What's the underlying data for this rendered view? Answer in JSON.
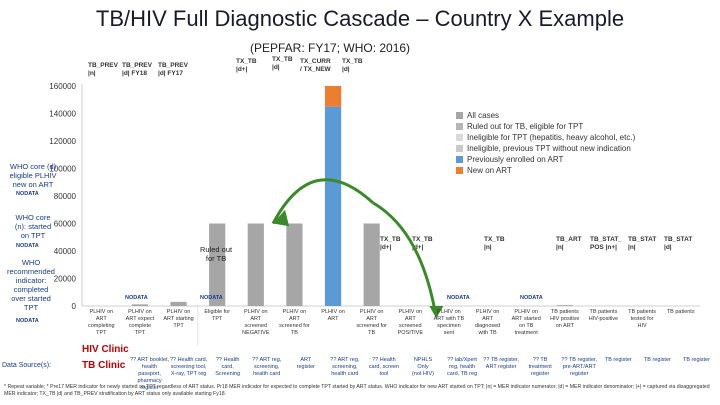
{
  "title": "TB/HIV Full Diagnostic Cascade – Country X Example",
  "subtitle": "(PEPFAR: FY17; WHO: 2016)",
  "headers": [
    {
      "text": "TB_PREV\n|n|"
    },
    {
      "text": "TB_PREV\n|d| FY18"
    },
    {
      "text": "TB_PREV\n|d| FY17"
    },
    {
      "text": "TX_TB\n|d+|"
    },
    {
      "text": "TX_TB\n|d|"
    },
    {
      "text": "TX_CURR\n/ TX_NEW"
    },
    {
      "text": "TX_TB\n|d|"
    },
    {
      "text": "TX_TB\n|d+|"
    },
    {
      "text": "TX_TB\n|d+|"
    },
    {
      "text": "TX_TB\n|n|"
    },
    {
      "text": "TB_ART\n|n|"
    },
    {
      "text": "TB_STAT_\nPOS |n+|"
    },
    {
      "text": "TB_STAT\n|n|"
    },
    {
      "text": "TB_STAT\n|d|"
    }
  ],
  "side_labels": {
    "who_core_a": "WHO core (d)\neligible PLHIV\nnew on ART",
    "who_core_n": "WHO core\n(n): started\non TPT",
    "who_recommended": "WHO\nrecommended\nindicator:\ncompleted\nover started\nTPT",
    "nodata": "NODATA"
  },
  "ruled_out_label": "Ruled out\nfor TB",
  "hiv_clinic": "HIV Clinic",
  "tb_clinic": "TB Clinic",
  "data_sources_label": "Data Source(s):",
  "x_labels": [
    "PLHIV on\nART\ncompleting\nTPT",
    "PLHIV on\nART expect\ncomplete\nTPT",
    "PLHIV on\nART starting\nTPT",
    "Eligible for\nTPT",
    "PLHIV on\nART\nscreened\nNEGATIVE",
    "PLHIV on\nART\nscreened for\nTB",
    "PLHIV on\nART",
    "PLHIV on\nART\nscreened for\nTB",
    "PLHIV on\nART\nscreened\nPOSITIVE",
    "PLHIV on\nART with TB\nspecimen\nsent",
    "PLHIV on\nART\ndiagnosed\nwith TB",
    "PLHIV on\nART started\non TB\ntreatment",
    "TB patients\nHIV positive\non ART",
    "TB patients\nHIV-positive",
    "TB patients\ntested for\nHIV",
    "TB patients"
  ],
  "sources": [
    "?? ART booklet, health\npassport, pharmacy register",
    "?? Health card,\nscreening tool,\nX-ray, TPT reg",
    "?? Health\ncard,\nScreening",
    "?? ART reg,\nscreening,\nhealth card",
    "ART\nregister",
    "?? ART reg,\nscreening,\nhealth card",
    "?? Health\ncard, screen\ntool",
    "NPHLS\nOnly\n(not HIV)",
    "?? lab/Xpert\nreg, health\ncard, TB reg",
    "?? TB register,\nART register",
    "?? TB\ntreatment\nregister",
    "?? TB register,\npre-ART/ART\nregister",
    "TB register",
    "TB register",
    "TB register"
  ],
  "footnote": "* Repeat variable; * Pre17 MER indicator for newly started on TPT regardless of ART status. Pr18 MER indicator for expected to complete TPT started by ART status. WHO indicator for new ART started on TPT; |n| = MER indicator numerator; |d| = MER indicator denominator; |+| = captured via disaggregated MER indicator; TX_TB |d| and TB_PREV stratification by ART status only available starting Fy18.",
  "colors": {
    "all_cases": "#a6a6a6",
    "ruled_out": "#b7b7b7",
    "ineligible_hep": "#d9d9d9",
    "ineligible_prev": "#c9c9c9",
    "previously_on_art": "#5b9bd5",
    "new_on_art": "#ed7d31",
    "arrow": "#3a8a2a",
    "title": "#1a1a2e",
    "accent_blue": "#1a3c8a",
    "clinic_red": "#c00000"
  },
  "chart_data": {
    "type": "bar",
    "ylim": [
      0,
      160000
    ],
    "yticks": [
      "0",
      "20000",
      "40000",
      "60000",
      "80000",
      "100000",
      "120000",
      "140000",
      "160000"
    ],
    "stacked": true,
    "legend_placement": "right",
    "grid": false,
    "series": [
      {
        "name": "All cases",
        "color": "#a6a6a6",
        "values": [
          0,
          1200,
          3000,
          60000,
          60000,
          60000,
          0,
          60000,
          0,
          0,
          0,
          0,
          600,
          0,
          0,
          0
        ]
      },
      {
        "name": "Ruled out for TB, eligible for TPT",
        "color": "#b7b7b7",
        "values": [
          0,
          0,
          0,
          0,
          0,
          0,
          0,
          0,
          0,
          0,
          0,
          0,
          0,
          0,
          0,
          0
        ]
      },
      {
        "name": "Ineligible for TPT (hepatitis, heavy alcohol, etc.)",
        "color": "#d9d9d9",
        "values": [
          0,
          0,
          0,
          0,
          0,
          0,
          0,
          0,
          0,
          0,
          0,
          0,
          0,
          0,
          0,
          0
        ]
      },
      {
        "name": "Ineligible, previous TPT without new indication",
        "color": "#c9c9c9",
        "values": [
          0,
          0,
          0,
          0,
          0,
          0,
          0,
          0,
          0,
          0,
          0,
          0,
          0,
          0,
          0,
          0
        ]
      },
      {
        "name": "Previously enrolled on ART",
        "color": "#5b9bd5",
        "values": [
          0,
          0,
          0,
          0,
          0,
          0,
          145000,
          0,
          0,
          0,
          0,
          0,
          0,
          0,
          0,
          0
        ]
      },
      {
        "name": "New on ART",
        "color": "#ed7d31",
        "values": [
          0,
          0,
          0,
          0,
          0,
          0,
          15000,
          0,
          0,
          0,
          0,
          0,
          0,
          0,
          0,
          0
        ]
      }
    ],
    "nodata_columns": [
      1,
      6,
      15,
      17
    ]
  }
}
